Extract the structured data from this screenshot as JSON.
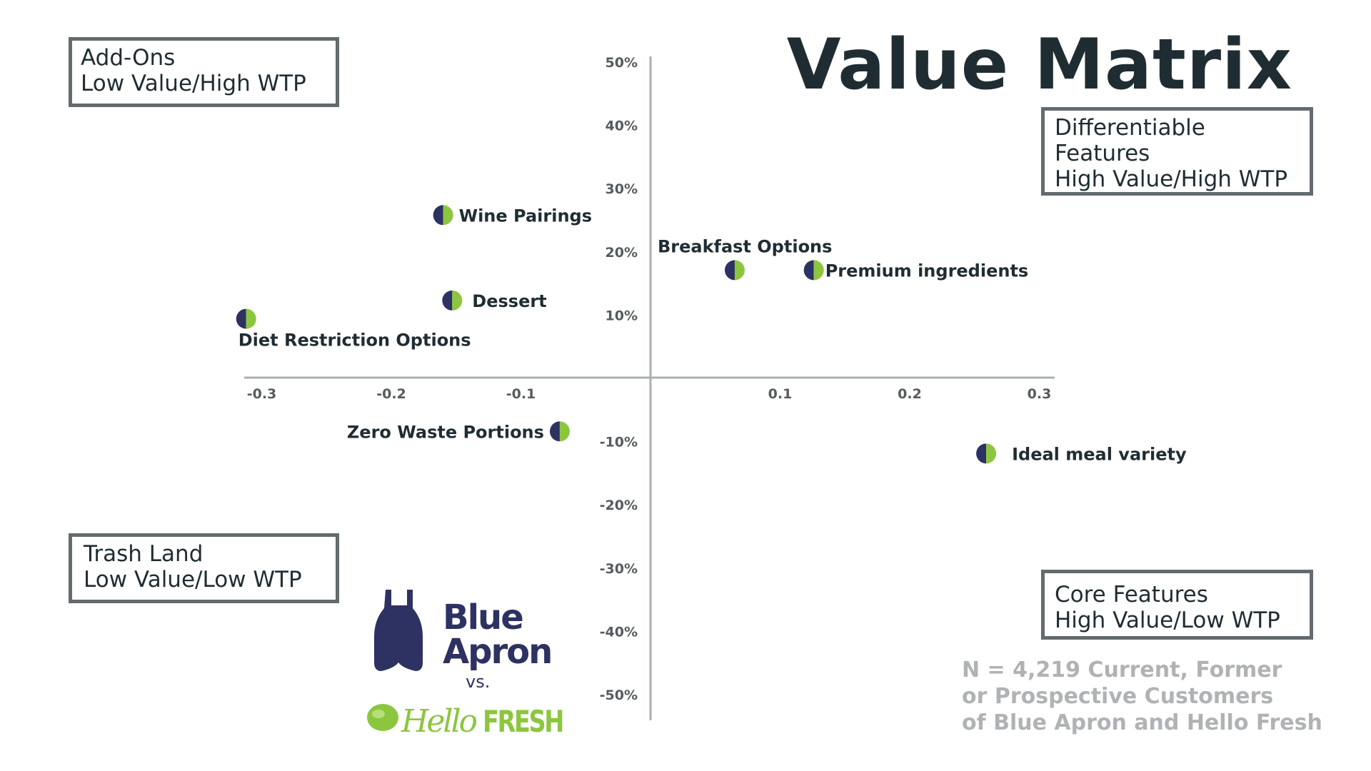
{
  "title": "Value Matrix",
  "quadrants": {
    "top_left": [
      "Add-Ons",
      "Low Value/High WTP"
    ],
    "top_right": [
      "Differentiable",
      "Features",
      "High Value/High WTP"
    ],
    "bottom_left": [
      "Trash Land",
      "Low Value/Low WTP"
    ],
    "bottom_right": [
      "Core Features",
      "High Value/Low WTP"
    ]
  },
  "note": [
    "N = 4,219 Current, Former",
    "or Prospective Customers",
    "of Blue Apron and Hello Fresh"
  ],
  "logos": {
    "blue_apron": [
      "Blue",
      "Apron"
    ],
    "vs": "vs.",
    "hellofresh": [
      "Hello",
      "FRESH"
    ]
  },
  "colors": {
    "navy": "#2d3262",
    "green": "#8cc63f",
    "axis": "#a9b0b2",
    "text": "#1f2d33"
  },
  "chart_data": {
    "type": "scatter",
    "title": "Value Matrix",
    "xlabel": "",
    "ylabel": "",
    "xlim": [
      -0.32,
      0.32
    ],
    "ylim": [
      -0.54,
      0.52
    ],
    "x_ticks": [
      -0.3,
      -0.2,
      -0.1,
      0.1,
      0.2,
      0.3
    ],
    "x_tick_labels": [
      "-0.3",
      "-0.2",
      "-0.1",
      "0.1",
      "0.2",
      "0.3"
    ],
    "y_ticks": [
      0.5,
      0.4,
      0.3,
      0.2,
      0.1,
      -0.1,
      -0.2,
      -0.3,
      -0.4,
      -0.5
    ],
    "y_tick_labels": [
      "50%",
      "40%",
      "30%",
      "20%",
      "10%",
      "-10%",
      "-20%",
      "-30%",
      "-40%",
      "-50%"
    ],
    "grid": false,
    "points": [
      {
        "label": "Wine Pairings",
        "x": -0.16,
        "y": 0.257
      },
      {
        "label": "Breakfast Options",
        "x": 0.065,
        "y": 0.17
      },
      {
        "label": "Premium ingredients",
        "x": 0.126,
        "y": 0.17
      },
      {
        "label": "Dessert",
        "x": -0.153,
        "y": 0.122
      },
      {
        "label": "Diet Restriction Options",
        "x": -0.312,
        "y": 0.093
      },
      {
        "label": "Zero Waste Portions",
        "x": -0.07,
        "y": -0.085
      },
      {
        "label": "Ideal meal variety",
        "x": 0.259,
        "y": -0.12
      }
    ]
  }
}
